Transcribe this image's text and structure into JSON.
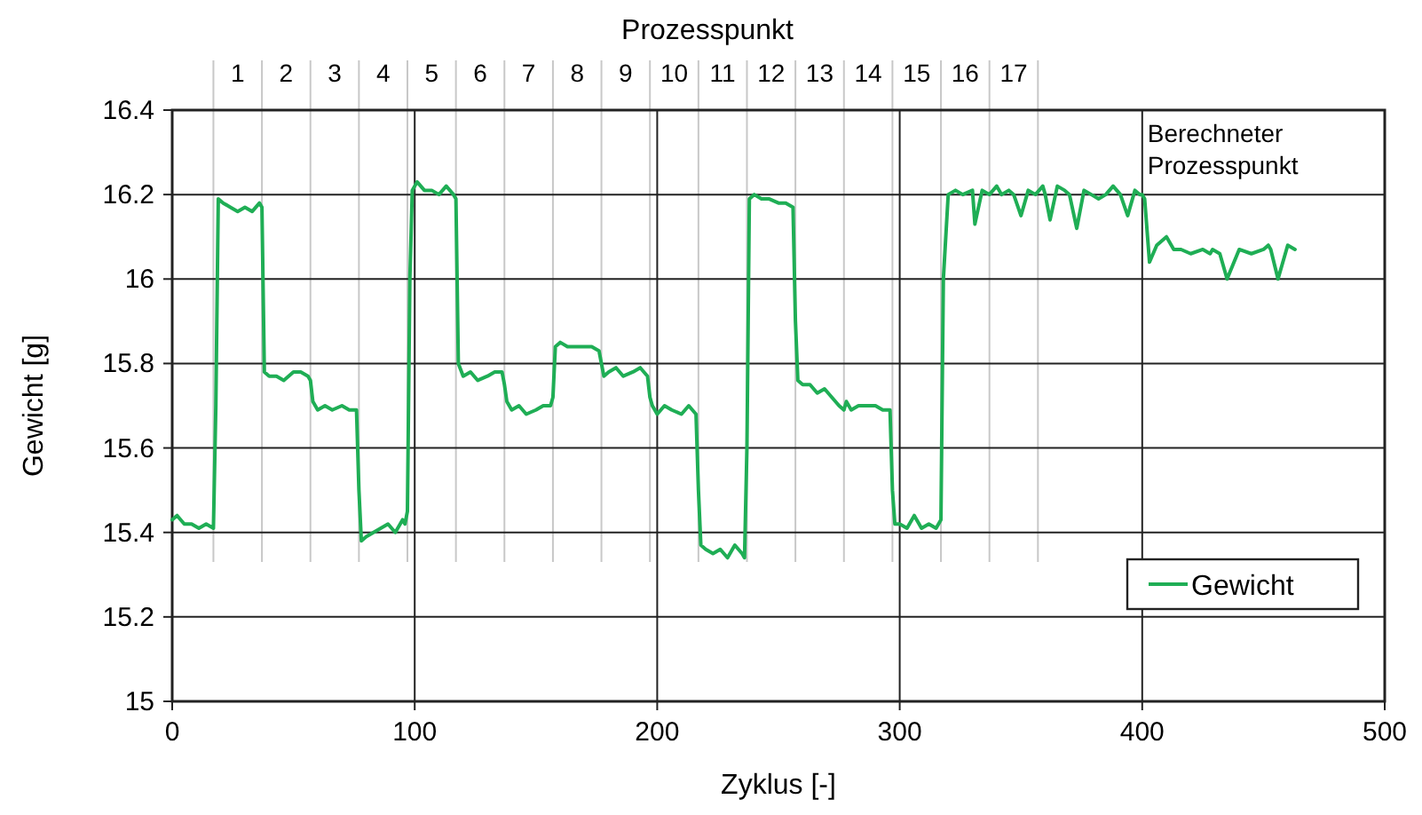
{
  "chart_data": {
    "type": "line",
    "xlabel": "Zyklus  [-]",
    "ylabel": "Gewicht  [g]",
    "x2label": "Prozesspunkt",
    "xlim": [
      0,
      500
    ],
    "xticks": [
      0,
      100,
      200,
      300,
      400,
      500
    ],
    "ylim": [
      15,
      16.4
    ],
    "yticks": [
      15,
      15.2,
      15.4,
      15.6,
      15.8,
      16,
      16.2,
      16.4
    ],
    "x2lim": [
      -0.35,
      24.65
    ],
    "x2ticks": [
      {
        "value": 0.5,
        "label": null
      },
      1,
      {
        "value": 1.5,
        "label": null
      },
      2,
      {
        "value": 2.5,
        "label": null
      },
      3,
      {
        "value": 3.5,
        "label": null
      },
      4,
      {
        "value": 4.5,
        "label": null
      },
      5,
      {
        "value": 5.5,
        "label": null
      },
      6,
      {
        "value": 6.5,
        "label": null
      },
      7,
      {
        "value": 7.5,
        "label": null
      },
      8,
      {
        "value": 8.5,
        "label": null
      },
      9,
      {
        "value": 9.5,
        "label": null
      },
      10,
      {
        "value": 10.5,
        "label": null
      },
      11,
      {
        "value": 11.5,
        "label": null
      },
      12,
      {
        "value": 12.5,
        "label": null
      },
      13,
      {
        "value": 13.5,
        "label": null
      },
      14,
      {
        "value": 14.5,
        "label": null
      },
      15,
      {
        "value": 15.5,
        "label": null
      },
      16,
      {
        "value": 16.5,
        "label": null
      },
      17,
      {
        "value": 17.5,
        "label": null
      }
    ],
    "grid": true,
    "legend": "bottom right",
    "line_style": "solid",
    "annotations": [
      "Berechneter\nProzesspunkt"
    ],
    "series": [
      {
        "name": "Gewicht",
        "color": "#1fae55",
        "x": [
          0,
          2,
          5,
          8,
          11,
          14,
          17,
          18,
          19,
          21,
          24,
          27,
          30,
          33,
          36,
          37,
          38,
          40,
          43,
          46,
          50,
          53,
          56,
          57,
          58,
          60,
          63,
          66,
          70,
          73,
          76,
          77,
          78,
          80,
          83,
          86,
          89,
          92,
          95,
          96,
          97,
          98,
          99,
          101,
          104,
          107,
          110,
          113,
          116,
          117,
          118,
          120,
          123,
          126,
          130,
          133,
          136,
          137,
          138,
          140,
          143,
          146,
          150,
          153,
          156,
          157,
          158,
          160,
          163,
          166,
          170,
          173,
          176,
          177,
          178,
          180,
          183,
          186,
          190,
          193,
          196,
          197,
          198,
          200,
          203,
          206,
          210,
          213,
          216,
          217,
          218,
          220,
          223,
          226,
          229,
          232,
          235,
          236,
          237,
          238,
          240,
          243,
          246,
          250,
          253,
          256,
          257,
          258,
          260,
          263,
          266,
          269,
          272,
          275,
          277,
          278,
          280,
          283,
          286,
          290,
          293,
          296,
          297,
          298,
          300,
          303,
          306,
          309,
          312,
          315,
          317,
          318,
          320,
          323,
          326,
          330,
          331,
          334,
          337,
          340,
          342,
          345,
          347,
          350,
          353,
          356,
          359,
          360,
          362,
          365,
          368,
          370,
          373,
          376,
          379,
          382,
          385,
          388,
          391,
          394,
          397,
          399,
          400,
          401,
          403,
          406,
          410,
          413,
          416,
          420,
          425,
          428,
          429,
          432,
          435,
          440,
          445,
          450,
          452,
          453,
          456,
          460,
          463
        ],
        "values": [
          15.43,
          15.44,
          15.42,
          15.42,
          15.41,
          15.42,
          15.41,
          15.7,
          16.19,
          16.18,
          16.17,
          16.16,
          16.17,
          16.16,
          16.18,
          16.17,
          15.78,
          15.77,
          15.77,
          15.76,
          15.78,
          15.78,
          15.77,
          15.76,
          15.71,
          15.69,
          15.7,
          15.69,
          15.7,
          15.69,
          15.69,
          15.5,
          15.38,
          15.39,
          15.4,
          15.41,
          15.42,
          15.4,
          15.43,
          15.42,
          15.45,
          16.0,
          16.21,
          16.23,
          16.21,
          16.21,
          16.2,
          16.22,
          16.2,
          16.19,
          15.8,
          15.77,
          15.78,
          15.76,
          15.77,
          15.78,
          15.78,
          15.75,
          15.71,
          15.69,
          15.7,
          15.68,
          15.69,
          15.7,
          15.7,
          15.72,
          15.84,
          15.85,
          15.84,
          15.84,
          15.84,
          15.84,
          15.83,
          15.8,
          15.77,
          15.78,
          15.79,
          15.77,
          15.78,
          15.79,
          15.77,
          15.72,
          15.7,
          15.68,
          15.7,
          15.69,
          15.68,
          15.7,
          15.68,
          15.5,
          15.37,
          15.36,
          15.35,
          15.36,
          15.34,
          15.37,
          15.35,
          15.34,
          15.6,
          16.19,
          16.2,
          16.19,
          16.19,
          16.18,
          16.18,
          16.17,
          15.9,
          15.76,
          15.75,
          15.75,
          15.73,
          15.74,
          15.72,
          15.7,
          15.69,
          15.71,
          15.69,
          15.7,
          15.7,
          15.7,
          15.69,
          15.69,
          15.5,
          15.42,
          15.42,
          15.41,
          15.44,
          15.41,
          15.42,
          15.41,
          15.43,
          16.0,
          16.2,
          16.21,
          16.2,
          16.21,
          16.13,
          16.21,
          16.2,
          16.22,
          16.2,
          16.21,
          16.2,
          16.15,
          16.21,
          16.2,
          16.22,
          16.2,
          16.14,
          16.22,
          16.21,
          16.2,
          16.12,
          16.21,
          16.2,
          16.19,
          16.2,
          16.22,
          16.2,
          16.15,
          16.21,
          16.2,
          16.2,
          16.19,
          16.04,
          16.08,
          16.1,
          16.07,
          16.07,
          16.06,
          16.07,
          16.06,
          16.07,
          16.06,
          16.0,
          16.07,
          16.06,
          16.07,
          16.08,
          16.07,
          16.0,
          16.08,
          16.07
        ]
      }
    ]
  }
}
